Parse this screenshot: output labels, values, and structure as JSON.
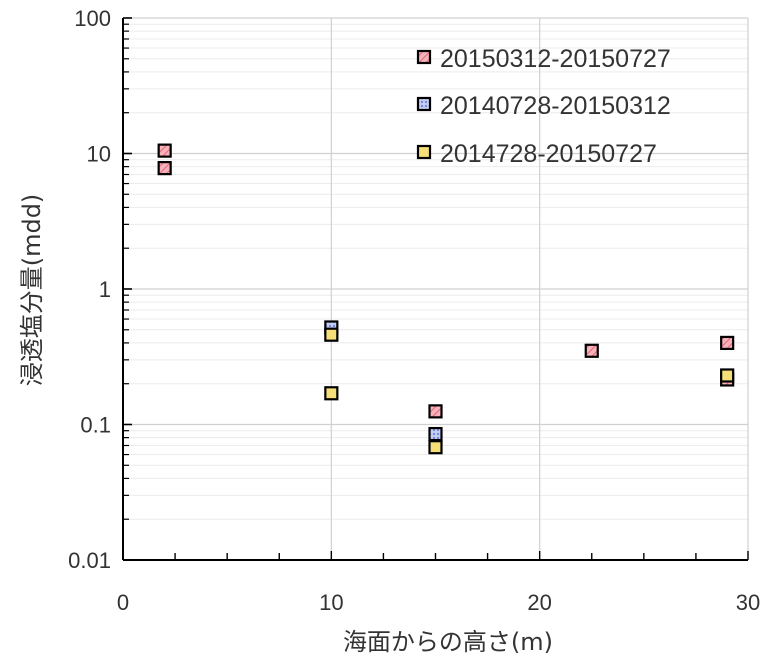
{
  "chart_data": {
    "type": "scatter",
    "xlabel": "海面からの高さ(m)",
    "ylabel": "浸透塩分量(mdd)",
    "xlim": [
      0,
      30
    ],
    "ylim": [
      0.01,
      100
    ],
    "yscale": "log",
    "x_ticks": [
      0,
      10,
      20,
      30
    ],
    "x_tick_labels": [
      "0",
      "10",
      "20",
      "30"
    ],
    "y_ticks": [
      0.01,
      0.1,
      1,
      10,
      100
    ],
    "y_tick_labels": [
      "0.01",
      "0.1",
      "1",
      "10",
      "100"
    ],
    "grid": true,
    "legend_position": "top-right",
    "series": [
      {
        "name": "20150312-20150727",
        "color": "#f4a0a8",
        "pattern": "diagonal-hatch",
        "points": [
          [
            2,
            10.5
          ],
          [
            2,
            7.8
          ],
          [
            15,
            0.125
          ],
          [
            22.5,
            0.35
          ],
          [
            29,
            0.4
          ],
          [
            29,
            0.215
          ]
        ]
      },
      {
        "name": "20140728-20150312",
        "color": "#a9b8f0",
        "pattern": "dots",
        "points": [
          [
            10,
            0.52
          ],
          [
            15,
            0.085
          ]
        ]
      },
      {
        "name": "2014728-20150727",
        "color": "#f6df78",
        "pattern": "solid",
        "points": [
          [
            10,
            0.46
          ],
          [
            10,
            0.17
          ],
          [
            15,
            0.068
          ],
          [
            29,
            0.23
          ]
        ]
      }
    ]
  }
}
